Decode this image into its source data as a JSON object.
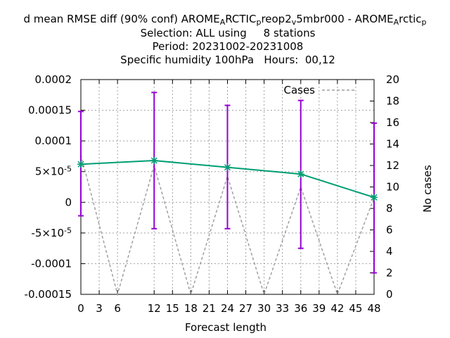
{
  "chart_data": {
    "type": "line",
    "title": "d mean RMSE diff (90% conf) AROME_ARCTIC_preop2_v5mbr000 - AROME_Arctic_p",
    "title_lines": [
      "d mean RMSE diff (90% conf) AROME",
      "Selection: ALL using     8 stations",
      "Period: 20231002-20231008",
      "Specific humidity 100hPa   Hours:  00,12"
    ],
    "title_line1_parts": [
      {
        "text": "d mean RMSE diff (90% conf) AROME",
        "sub": false
      },
      {
        "text": "A",
        "sub": true
      },
      {
        "text": "RCTIC",
        "sub": false
      },
      {
        "text": "p",
        "sub": true
      },
      {
        "text": "reop2",
        "sub": false
      },
      {
        "text": "v",
        "sub": true
      },
      {
        "text": "5mbr000 - AROME",
        "sub": false
      },
      {
        "text": "A",
        "sub": true
      },
      {
        "text": "rctic",
        "sub": false
      },
      {
        "text": "p",
        "sub": true
      }
    ],
    "xlabel": "Forecast length",
    "ylabel": "",
    "y2label": "No cases",
    "xlim": [
      0,
      48
    ],
    "ylim": [
      -0.00015,
      0.0002
    ],
    "y2lim": [
      0,
      20
    ],
    "x_ticks": [
      0,
      3,
      6,
      12,
      15,
      18,
      21,
      24,
      27,
      30,
      33,
      36,
      39,
      42,
      45,
      48
    ],
    "x_tick_labels": [
      "0",
      "3",
      "6",
      "12",
      "15",
      "18",
      "21",
      "24",
      "27",
      "30",
      "33",
      "36",
      "39",
      "42",
      "45",
      "48"
    ],
    "y_ticks": [
      -0.00015,
      -0.0001,
      -5e-05,
      0,
      5e-05,
      0.0001,
      0.00015,
      0.0002
    ],
    "y_tick_labels": [
      {
        "base": "-0.00015",
        "exp": ""
      },
      {
        "base": "-0.0001",
        "exp": ""
      },
      {
        "base": "-5×10",
        "exp": "-5"
      },
      {
        "base": "0",
        "exp": ""
      },
      {
        "base": "5×10",
        "exp": "-5"
      },
      {
        "base": "0.0001",
        "exp": ""
      },
      {
        "base": "0.00015",
        "exp": ""
      },
      {
        "base": "0.0002",
        "exp": ""
      }
    ],
    "y2_ticks": [
      0,
      2,
      4,
      6,
      8,
      10,
      12,
      14,
      16,
      18,
      20
    ],
    "y2_tick_labels": [
      "0",
      "2",
      "4",
      "6",
      "8",
      "10",
      "12",
      "14",
      "16",
      "18",
      "20"
    ],
    "grid": true,
    "legend": {
      "position": "top-right",
      "entries": [
        "Cases"
      ]
    },
    "colors": {
      "diff": "#009e73",
      "errorbar": "#9400d3",
      "cases": "#a0a0a0",
      "grid": "#a0a0a0",
      "axis": "#000000"
    },
    "series": [
      {
        "type": "line",
        "axis": "y",
        "x": [
          0,
          12,
          24,
          36,
          48
        ],
        "y": [
          6.2e-05,
          6.8e-05,
          5.7e-05,
          4.6e-05,
          8e-06
        ],
        "y_low": [
          -2.2e-05,
          -4.3e-05,
          -4.3e-05,
          -7.5e-05,
          -0.000115
        ],
        "y_high": [
          0.000148,
          0.000179,
          0.000158,
          0.000166,
          0.000129
        ]
      },
      {
        "name": "Cases",
        "type": "line",
        "axis": "y2",
        "dashed": true,
        "x": [
          0,
          6,
          12,
          18,
          24,
          30,
          36,
          42,
          48
        ],
        "y": [
          13,
          0,
          12,
          0,
          11,
          0,
          10,
          0,
          9
        ]
      }
    ]
  }
}
